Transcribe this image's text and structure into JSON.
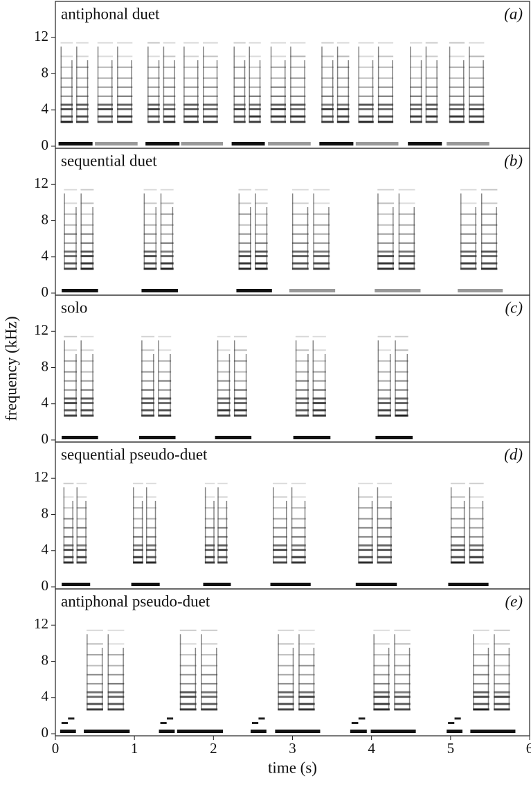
{
  "chart_data": [
    {
      "type": "spectrogram",
      "title": "antiphonal duet",
      "panel_label": "(a)",
      "xlim": [
        0,
        6
      ],
      "ylim": [
        0,
        16
      ],
      "yticks": [
        0,
        4,
        8,
        12
      ],
      "segments": [
        {
          "x": [
            0.04,
            0.47
          ],
          "color": "#111111"
        },
        {
          "x": [
            0.5,
            1.04
          ],
          "color": "#999999"
        },
        {
          "x": [
            1.14,
            1.57
          ],
          "color": "#111111"
        },
        {
          "x": [
            1.59,
            2.12
          ],
          "color": "#999999"
        },
        {
          "x": [
            2.23,
            2.65
          ],
          "color": "#111111"
        },
        {
          "x": [
            2.69,
            3.23
          ],
          "color": "#999999"
        },
        {
          "x": [
            3.34,
            3.77
          ],
          "color": "#111111"
        },
        {
          "x": [
            3.8,
            4.34
          ],
          "color": "#999999"
        },
        {
          "x": [
            4.46,
            4.89
          ],
          "color": "#111111"
        },
        {
          "x": [
            4.95,
            5.49
          ],
          "color": "#999999"
        }
      ]
    },
    {
      "type": "spectrogram",
      "title": "sequential duet",
      "panel_label": "(b)",
      "xlim": [
        0,
        6
      ],
      "ylim": [
        0,
        16
      ],
      "yticks": [
        0,
        4,
        8,
        12
      ],
      "segments": [
        {
          "x": [
            0.08,
            0.54
          ],
          "color": "#111111"
        },
        {
          "x": [
            1.09,
            1.55
          ],
          "color": "#111111"
        },
        {
          "x": [
            2.29,
            2.74
          ],
          "color": "#111111"
        },
        {
          "x": [
            2.96,
            3.54
          ],
          "color": "#999999"
        },
        {
          "x": [
            4.04,
            4.62
          ],
          "color": "#999999"
        },
        {
          "x": [
            5.09,
            5.66
          ],
          "color": "#999999"
        }
      ]
    },
    {
      "type": "spectrogram",
      "title": "solo",
      "panel_label": "(c)",
      "xlim": [
        0,
        6
      ],
      "ylim": [
        0,
        16
      ],
      "yticks": [
        0,
        4,
        8,
        12
      ],
      "ylabel": "frequency (kHz)",
      "segments": [
        {
          "x": [
            0.08,
            0.54
          ],
          "color": "#111111"
        },
        {
          "x": [
            1.06,
            1.52
          ],
          "color": "#111111"
        },
        {
          "x": [
            2.02,
            2.48
          ],
          "color": "#111111"
        },
        {
          "x": [
            3.01,
            3.48
          ],
          "color": "#111111"
        },
        {
          "x": [
            4.05,
            4.52
          ],
          "color": "#111111"
        }
      ]
    },
    {
      "type": "spectrogram",
      "title": "sequential pseudo-duet",
      "panel_label": "(d)",
      "xlim": [
        0,
        6
      ],
      "ylim": [
        0,
        16
      ],
      "yticks": [
        0,
        4,
        8,
        12
      ],
      "segments": [
        {
          "x": [
            0.08,
            0.44
          ],
          "color": "#111111"
        },
        {
          "x": [
            0.96,
            1.32
          ],
          "color": "#111111"
        },
        {
          "x": [
            1.87,
            2.22
          ],
          "color": "#111111"
        },
        {
          "x": [
            2.72,
            3.23
          ],
          "color": "#111111"
        },
        {
          "x": [
            3.8,
            4.32
          ],
          "color": "#111111"
        },
        {
          "x": [
            4.97,
            5.48
          ],
          "color": "#111111"
        }
      ]
    },
    {
      "type": "spectrogram",
      "title": "antiphonal pseudo-duet",
      "panel_label": "(e)",
      "xlim": [
        0,
        6
      ],
      "ylim": [
        0,
        16
      ],
      "yticks": [
        0,
        4,
        8,
        12
      ],
      "xticks": [
        0,
        1,
        2,
        3,
        4,
        5,
        6
      ],
      "xlabel": "time (s)",
      "segments": [
        {
          "x": [
            0.06,
            0.26
          ],
          "color": "#111111"
        },
        {
          "x": [
            0.36,
            0.94
          ],
          "color": "#111111"
        },
        {
          "x": [
            1.31,
            1.51
          ],
          "color": "#111111"
        },
        {
          "x": [
            1.54,
            2.12
          ],
          "color": "#111111"
        },
        {
          "x": [
            2.47,
            2.67
          ],
          "color": "#111111"
        },
        {
          "x": [
            2.78,
            3.35
          ],
          "color": "#111111"
        },
        {
          "x": [
            3.73,
            3.94
          ],
          "color": "#111111"
        },
        {
          "x": [
            3.99,
            4.56
          ],
          "color": "#111111"
        },
        {
          "x": [
            4.95,
            5.15
          ],
          "color": "#111111"
        },
        {
          "x": [
            5.25,
            5.82
          ],
          "color": "#111111"
        }
      ]
    }
  ]
}
